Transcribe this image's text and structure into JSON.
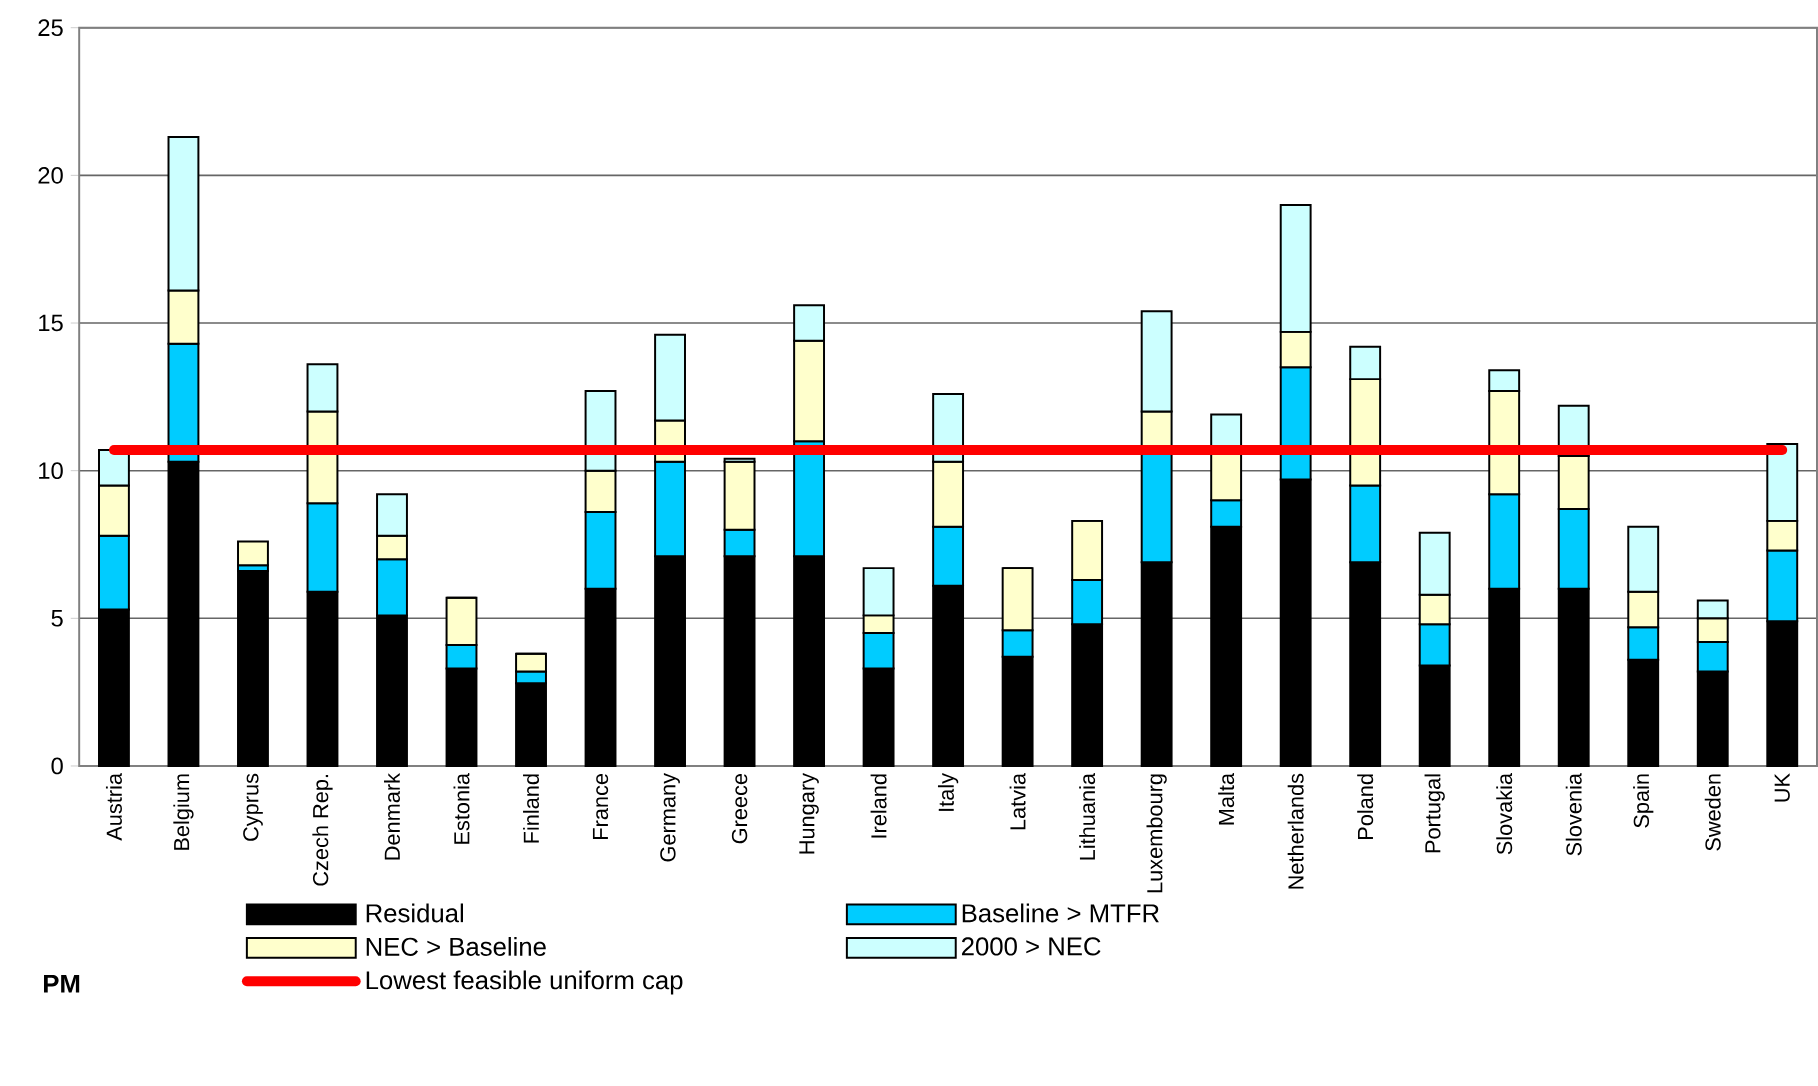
{
  "chart_data": {
    "type": "bar",
    "stacked": true,
    "categories": [
      "Austria",
      "Belgium",
      "Cyprus",
      "Czech Rep.",
      "Denmark",
      "Estonia",
      "Finland",
      "France",
      "Germany",
      "Greece",
      "Hungary",
      "Ireland",
      "Italy",
      "Latvia",
      "Lithuania",
      "Luxembourg",
      "Malta",
      "Netherlands",
      "Poland",
      "Portugal",
      "Slovakia",
      "Slovenia",
      "Spain",
      "Sweden",
      "UK"
    ],
    "series": [
      {
        "name": "Residual",
        "color": "#000000",
        "values": [
          5.3,
          10.3,
          6.6,
          5.9,
          5.1,
          3.3,
          2.8,
          6.0,
          7.1,
          7.1,
          7.1,
          3.3,
          6.1,
          3.7,
          4.8,
          6.9,
          8.1,
          9.7,
          6.9,
          3.4,
          6.0,
          6.0,
          3.6,
          3.2,
          4.9
        ]
      },
      {
        "name": "Baseline > MTFR",
        "color": "#00ccff",
        "values": [
          2.5,
          4.0,
          0.2,
          3.0,
          1.9,
          0.8,
          0.4,
          2.6,
          3.2,
          0.9,
          3.9,
          1.2,
          2.0,
          0.9,
          1.5,
          3.7,
          0.9,
          3.8,
          2.6,
          1.4,
          3.2,
          2.7,
          1.1,
          1.0,
          2.4
        ]
      },
      {
        "name": "NEC > Baseline",
        "color": "#ffffcc",
        "values": [
          1.7,
          1.8,
          0.8,
          3.1,
          0.8,
          1.6,
          0.6,
          1.4,
          1.4,
          2.3,
          3.4,
          0.6,
          2.2,
          2.1,
          2.0,
          1.4,
          1.6,
          1.2,
          3.6,
          1.0,
          3.5,
          1.8,
          1.2,
          0.8,
          1.0
        ]
      },
      {
        "name": "2000 > NEC",
        "color": "#ccffff",
        "values": [
          1.2,
          5.2,
          null,
          1.6,
          1.4,
          0,
          0,
          2.7,
          2.9,
          0.1,
          1.2,
          1.6,
          2.3,
          0,
          0,
          3.4,
          1.3,
          4.3,
          1.1,
          2.1,
          0.7,
          1.7,
          2.2,
          0.6,
          2.6
        ]
      }
    ],
    "ylim": [
      0,
      25
    ],
    "yticks": [
      0,
      5,
      10,
      15,
      20,
      25
    ],
    "grid": "y",
    "legend": "bottom",
    "ref_lines": [
      {
        "axis": "y",
        "value": 10.7,
        "label": "Lowest feasible uniform cap",
        "color": "#ff0000"
      }
    ],
    "annotations": [
      "PM"
    ]
  }
}
